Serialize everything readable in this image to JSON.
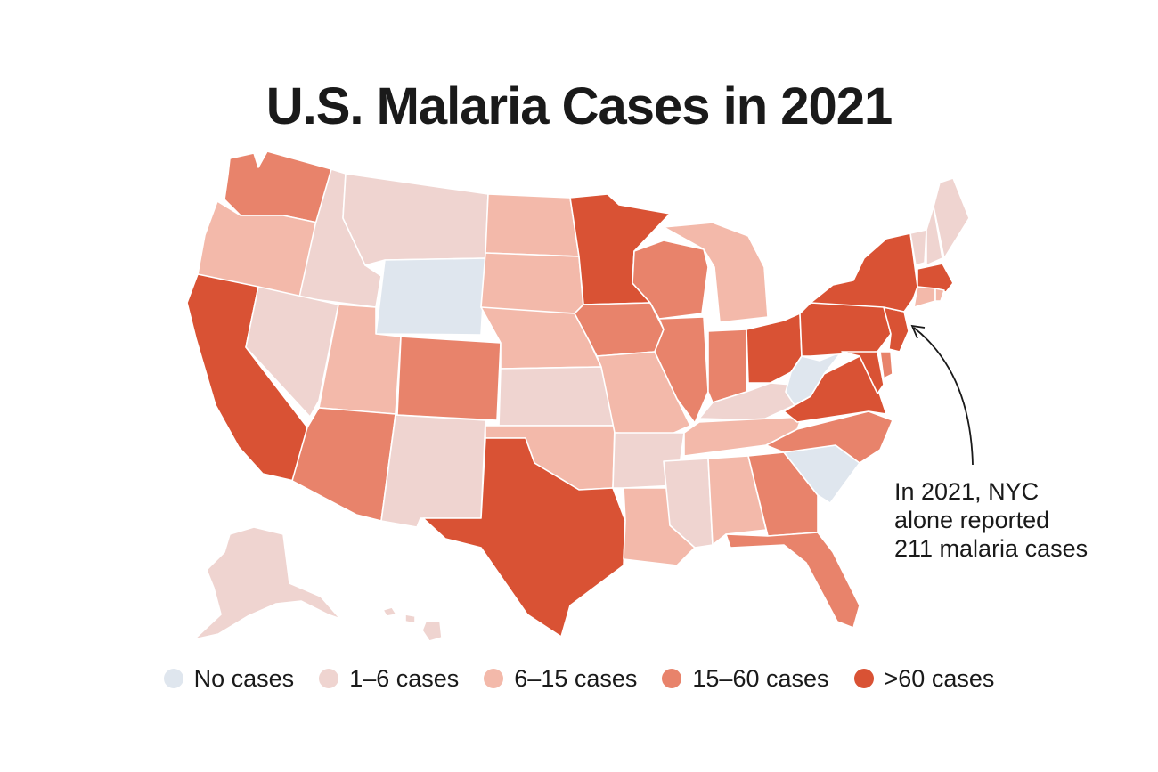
{
  "title": "U.S. Malaria Cases in 2021",
  "annotation": {
    "lines": [
      "In 2021, NYC",
      "alone reported",
      "211 malaria cases"
    ]
  },
  "legend": [
    {
      "label": "No cases",
      "color": "#dfe6ee"
    },
    {
      "label": "1–6 cases",
      "color": "#efd4d0"
    },
    {
      "label": "6–15 cases",
      "color": "#f3b9aa"
    },
    {
      "label": "15–60 cases",
      "color": "#e8836b"
    },
    {
      "label": ">60 cases",
      "color": "#d95234"
    }
  ],
  "map_data": {
    "type": "choropleth",
    "bins": [
      "No cases",
      "1–6 cases",
      "6–15 cases",
      "15–60 cases",
      ">60 cases"
    ],
    "states": {
      "WA": "15–60 cases",
      "OR": "6–15 cases",
      "CA": ">60 cases",
      "ID": "1–6 cases",
      "NV": "1–6 cases",
      "MT": "1–6 cases",
      "WY": "No cases",
      "UT": "6–15 cases",
      "AZ": "15–60 cases",
      "CO": "15–60 cases",
      "NM": "1–6 cases",
      "ND": "6–15 cases",
      "SD": "6–15 cases",
      "NE": "6–15 cases",
      "KS": "1–6 cases",
      "OK": "6–15 cases",
      "TX": ">60 cases",
      "MN": ">60 cases",
      "IA": "15–60 cases",
      "MO": "6–15 cases",
      "AR": "1–6 cases",
      "LA": "6–15 cases",
      "WI": "15–60 cases",
      "IL": "15–60 cases",
      "MI": "6–15 cases",
      "IN": "15–60 cases",
      "OH": ">60 cases",
      "KY": "1–6 cases",
      "TN": "6–15 cases",
      "MS": "1–6 cases",
      "AL": "6–15 cases",
      "GA": "15–60 cases",
      "FL": "15–60 cases",
      "SC": "No cases",
      "NC": "15–60 cases",
      "VA": ">60 cases",
      "WV": "No cases",
      "PA": ">60 cases",
      "NY": ">60 cases",
      "NJ": ">60 cases",
      "DE": "15–60 cases",
      "MD": ">60 cases",
      "CT": "6–15 cases",
      "RI": "6–15 cases",
      "MA": ">60 cases",
      "VT": "1–6 cases",
      "NH": "1–6 cases",
      "ME": "1–6 cases",
      "AK": "1–6 cases",
      "HI": "1–6 cases"
    }
  }
}
